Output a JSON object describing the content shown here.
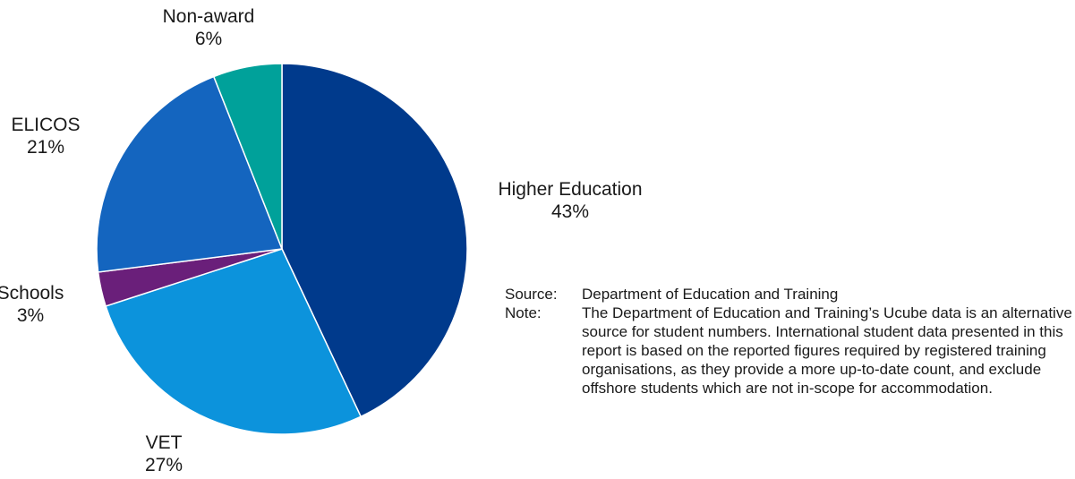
{
  "chart_data": {
    "type": "pie",
    "slices": [
      {
        "label": "Higher Education",
        "value": 43,
        "value_label": "43%",
        "color": "#003A8C"
      },
      {
        "label": "VET",
        "value": 27,
        "value_label": "27%",
        "color": "#0C93DC"
      },
      {
        "label": "Schools",
        "value": 3,
        "value_label": "3%",
        "color": "#6A1F7A"
      },
      {
        "label": "ELICOS",
        "value": 21,
        "value_label": "21%",
        "color": "#1465BF"
      },
      {
        "label": "Non-award",
        "value": 6,
        "value_label": "6%",
        "color": "#00A19A"
      }
    ],
    "start": "12 o'clock",
    "direction": "clockwise"
  },
  "notes": {
    "source_key": "Source:",
    "source_text": "Department of Education and Training",
    "note_key": "Note:",
    "note_text": "The Department of Education and Training’s Ucube data is an alternative source for student numbers. International student data presented in this report is based on the reported figures required by registered training organisations, as they provide a more up-to-date count, and exclude offshore students which are not in-scope for accommodation."
  }
}
